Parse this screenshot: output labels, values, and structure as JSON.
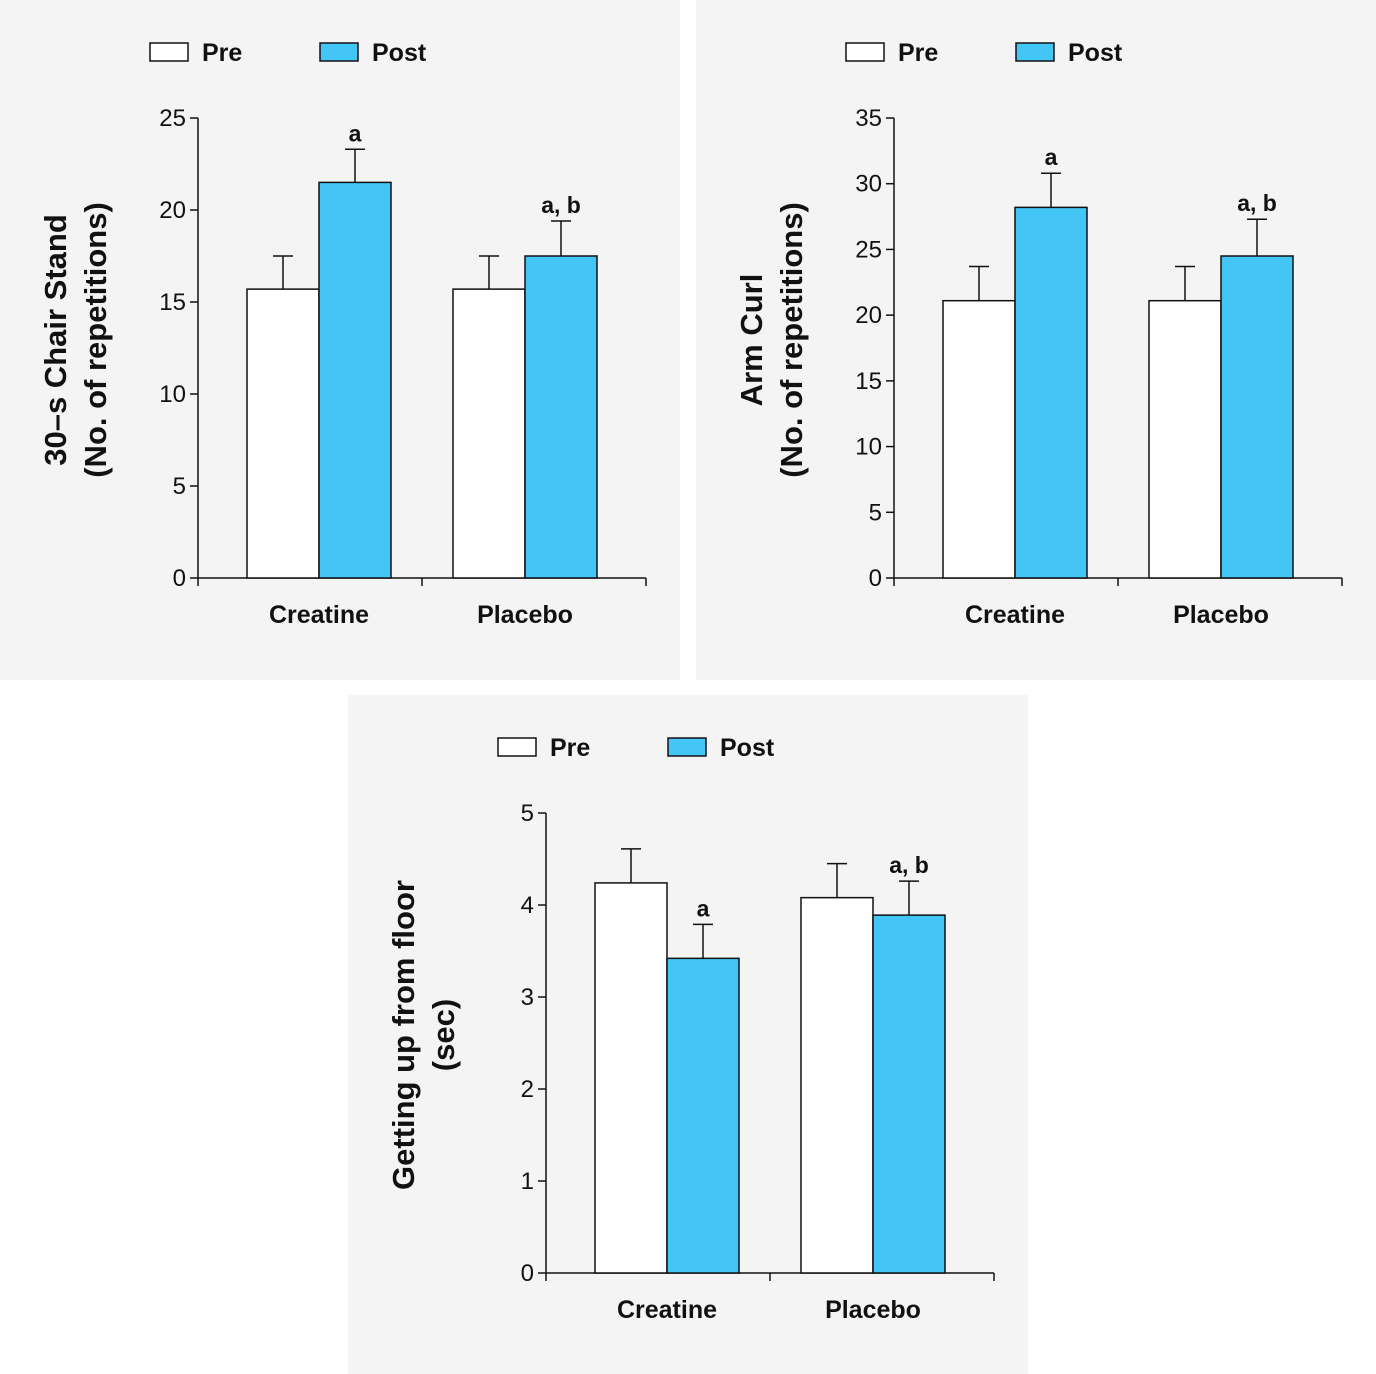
{
  "colors": {
    "pre": "#ffffff",
    "post": "#43c6f5",
    "stroke": "#111111",
    "panel_bg": "#f4f4f4"
  },
  "legend": {
    "pre_label": "Pre",
    "post_label": "Post"
  },
  "chart_data": [
    {
      "type": "bar",
      "title": "",
      "ylabel_lines": [
        "30–s Chair Stand",
        "(No. of repetitions)"
      ],
      "xlabel": "",
      "categories": [
        "Creatine",
        "Placebo"
      ],
      "ylim": [
        0,
        25
      ],
      "yticks": [
        0,
        5,
        10,
        15,
        20,
        25
      ],
      "series": [
        {
          "name": "Pre",
          "values": [
            15.7,
            15.7
          ],
          "errors": [
            1.8,
            1.8
          ]
        },
        {
          "name": "Post",
          "values": [
            21.5,
            17.5
          ],
          "errors": [
            1.8,
            1.9
          ]
        }
      ],
      "annotations": [
        {
          "category": "Creatine",
          "series": "Post",
          "text": "a"
        },
        {
          "category": "Placebo",
          "series": "Post",
          "text": "a, b"
        }
      ]
    },
    {
      "type": "bar",
      "title": "",
      "ylabel_lines": [
        "Arm Curl",
        "(No. of repetitions)"
      ],
      "xlabel": "",
      "categories": [
        "Creatine",
        "Placebo"
      ],
      "ylim": [
        0,
        35
      ],
      "yticks": [
        0,
        5,
        10,
        15,
        20,
        25,
        30,
        35
      ],
      "series": [
        {
          "name": "Pre",
          "values": [
            21.1,
            21.1
          ],
          "errors": [
            2.6,
            2.6
          ]
        },
        {
          "name": "Post",
          "values": [
            28.2,
            24.5
          ],
          "errors": [
            2.6,
            2.8
          ]
        }
      ],
      "annotations": [
        {
          "category": "Creatine",
          "series": "Post",
          "text": "a"
        },
        {
          "category": "Placebo",
          "series": "Post",
          "text": "a, b"
        }
      ]
    },
    {
      "type": "bar",
      "title": "",
      "ylabel_lines": [
        "Getting up from floor",
        "(sec)"
      ],
      "xlabel": "",
      "categories": [
        "Creatine",
        "Placebo"
      ],
      "ylim": [
        0,
        5
      ],
      "yticks": [
        0,
        1,
        2,
        3,
        4,
        5
      ],
      "series": [
        {
          "name": "Pre",
          "values": [
            4.24,
            4.08
          ],
          "errors": [
            0.37,
            0.37
          ]
        },
        {
          "name": "Post",
          "values": [
            3.42,
            3.89
          ],
          "errors": [
            0.37,
            0.37
          ]
        }
      ],
      "annotations": [
        {
          "category": "Creatine",
          "series": "Post",
          "text": "a"
        },
        {
          "category": "Placebo",
          "series": "Post",
          "text": "a, b"
        }
      ]
    }
  ]
}
